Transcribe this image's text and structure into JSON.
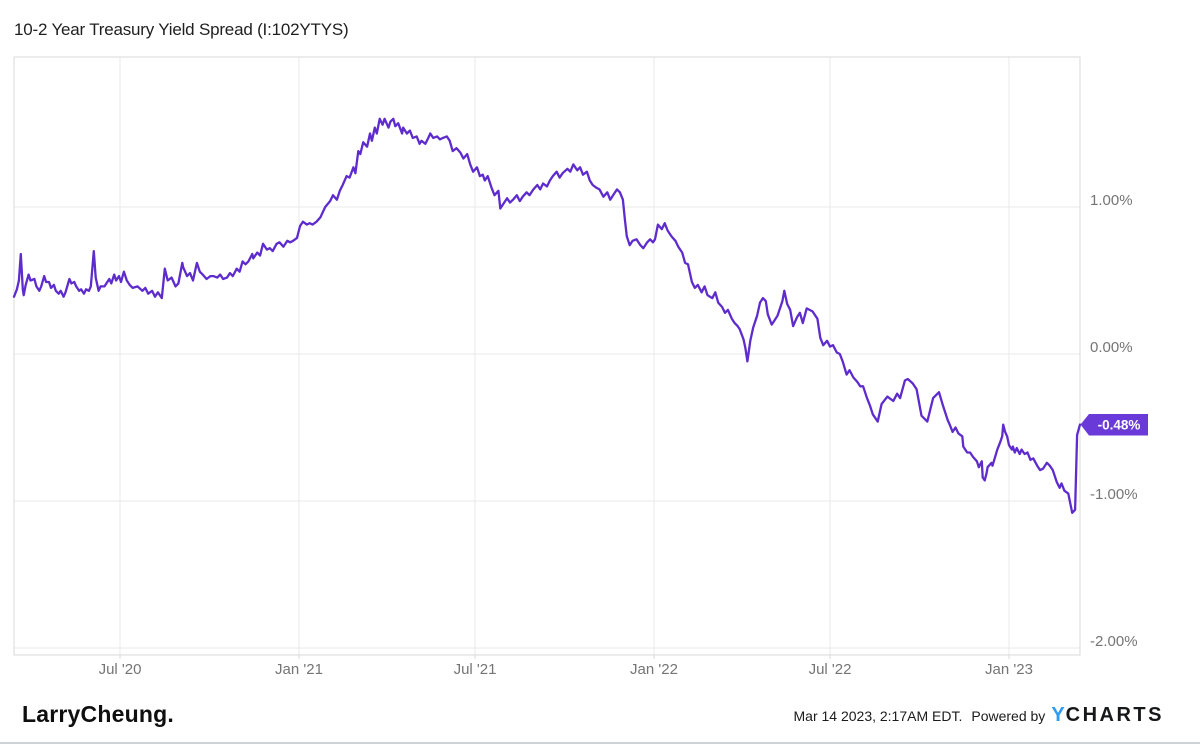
{
  "header": {
    "title": "10-2 Year Treasury Yield Spread (I:102YTYS)"
  },
  "footer": {
    "brand": "LarryCheung.",
    "timestamp": "Mar 14 2023, 2:17AM EDT.",
    "powered_by": "Powered by",
    "ycharts_y": "Y",
    "ycharts_rest": "CHARTS"
  },
  "colors": {
    "line": "#5e2ccd",
    "badge": "#6a3ad8",
    "badge_text": "#ffffff",
    "grid": "#e8e8e8",
    "plot_border": "#d9d9d9",
    "axis_text": "#757575",
    "ycharts_blue": "#2e9bf2",
    "divider": "#cfd2d4"
  },
  "chart_data": {
    "type": "line",
    "title": "10-2 Year Treasury Yield Spread (I:102YTYS)",
    "series_name": "10-2 Year Treasury Yield Spread",
    "unit": "percent",
    "x_domain": {
      "start": "2020-03-14",
      "end": "2023-03-14",
      "total_days": 1096
    },
    "ylim": [
      -2.05,
      2.02
    ],
    "grid": true,
    "legend_position": "none",
    "last_value_label": "-0.48%",
    "last_value": -0.48,
    "x_axis": {
      "ticks": [
        {
          "t": 109,
          "label": "Jul '20"
        },
        {
          "t": 293,
          "label": "Jan '21"
        },
        {
          "t": 474,
          "label": "Jul '21"
        },
        {
          "t": 658,
          "label": "Jan '22"
        },
        {
          "t": 839,
          "label": "Jul '22"
        },
        {
          "t": 1023,
          "label": "Jan '23"
        }
      ]
    },
    "y_axis": {
      "ticks": [
        {
          "value": 1,
          "label": "1.00%"
        },
        {
          "value": 0,
          "label": "0.00%"
        },
        {
          "value": -1,
          "label": "-1.00%"
        },
        {
          "value": -2,
          "label": "-2.00%"
        }
      ]
    },
    "points": {
      "t_days": [
        0,
        3,
        5,
        7,
        9,
        10,
        12,
        15,
        17,
        21,
        23,
        26,
        28,
        31,
        33,
        36,
        38,
        41,
        43,
        46,
        48,
        51,
        53,
        57,
        59,
        62,
        64,
        67,
        69,
        72,
        74,
        77,
        79,
        82,
        84,
        87,
        89,
        93,
        95,
        98,
        100,
        103,
        105,
        108,
        110,
        113,
        116,
        119,
        122,
        127,
        132,
        135,
        138,
        142,
        145,
        148,
        152,
        155,
        158,
        162,
        166,
        169,
        173,
        174,
        178,
        181,
        184,
        188,
        191,
        194,
        198,
        202,
        205,
        209,
        212,
        215,
        219,
        222,
        225,
        229,
        232,
        235,
        238,
        241,
        245,
        246,
        250,
        253,
        256,
        260,
        263,
        266,
        270,
        273,
        277,
        281,
        284,
        287,
        291,
        294,
        297,
        301,
        304,
        307,
        311,
        315,
        320,
        325,
        328,
        332,
        335,
        338,
        342,
        345,
        349,
        351,
        354,
        356,
        359,
        363,
        366,
        368,
        371,
        373,
        376,
        379,
        381,
        385,
        387,
        390,
        392,
        395,
        399,
        400,
        404,
        407,
        410,
        414,
        417,
        419,
        423,
        426,
        428,
        431,
        435,
        438,
        441,
        445,
        448,
        451,
        455,
        459,
        462,
        466,
        469,
        472,
        476,
        479,
        482,
        484,
        487,
        491,
        494,
        498,
        500,
        503,
        507,
        510,
        513,
        517,
        520,
        523,
        527,
        530,
        534,
        538,
        541,
        544,
        548,
        551,
        554,
        558,
        561,
        564,
        569,
        572,
        575,
        579,
        582,
        585,
        589,
        592,
        595,
        599,
        602,
        606,
        610,
        613,
        616,
        620,
        623,
        626,
        628,
        630,
        633,
        636,
        640,
        644,
        647,
        651,
        654,
        657,
        659,
        662,
        666,
        669,
        672,
        676,
        680,
        683,
        687,
        690,
        693,
        697,
        700,
        703,
        707,
        710,
        713,
        718,
        721,
        724,
        728,
        731,
        734,
        738,
        741,
        744,
        746,
        750,
        752,
        754,
        757,
        760,
        764,
        767,
        770,
        773,
        775,
        779,
        782,
        785,
        790,
        792,
        795,
        798,
        801,
        805,
        808,
        811,
        815,
        818,
        821,
        826,
        829,
        832,
        836,
        839,
        842,
        846,
        849,
        852,
        856,
        859,
        863,
        867,
        870,
        873,
        877,
        880,
        883,
        888,
        892,
        898,
        904,
        908,
        911,
        916,
        919,
        924,
        928,
        933,
        939,
        942,
        945,
        951,
        955,
        960,
        962,
        965,
        968,
        971,
        975,
        976,
        980,
        983,
        986,
        990,
        992,
        995,
        996,
        998,
        1000,
        1001,
        1005,
        1006,
        1011,
        1014,
        1016,
        1017,
        1019,
        1021,
        1023,
        1026,
        1027,
        1029,
        1031,
        1034,
        1036,
        1039,
        1042,
        1045,
        1048,
        1052,
        1055,
        1058,
        1062,
        1065,
        1068,
        1072,
        1075,
        1077,
        1080,
        1084,
        1088,
        1091,
        1093,
        1096
      ],
      "values": [
        0.39,
        0.44,
        0.5,
        0.68,
        0.44,
        0.4,
        0.47,
        0.54,
        0.5,
        0.51,
        0.46,
        0.43,
        0.46,
        0.53,
        0.49,
        0.49,
        0.45,
        0.47,
        0.43,
        0.41,
        0.43,
        0.39,
        0.42,
        0.51,
        0.48,
        0.49,
        0.46,
        0.43,
        0.44,
        0.41,
        0.44,
        0.43,
        0.46,
        0.7,
        0.52,
        0.43,
        0.46,
        0.46,
        0.48,
        0.51,
        0.48,
        0.54,
        0.5,
        0.53,
        0.49,
        0.56,
        0.5,
        0.47,
        0.45,
        0.46,
        0.43,
        0.45,
        0.41,
        0.43,
        0.39,
        0.42,
        0.38,
        0.58,
        0.5,
        0.52,
        0.46,
        0.48,
        0.62,
        0.59,
        0.53,
        0.55,
        0.5,
        0.62,
        0.56,
        0.54,
        0.51,
        0.53,
        0.53,
        0.52,
        0.54,
        0.51,
        0.52,
        0.55,
        0.53,
        0.58,
        0.56,
        0.63,
        0.61,
        0.63,
        0.68,
        0.65,
        0.69,
        0.67,
        0.75,
        0.71,
        0.72,
        0.7,
        0.75,
        0.76,
        0.73,
        0.77,
        0.76,
        0.77,
        0.79,
        0.87,
        0.9,
        0.88,
        0.89,
        0.88,
        0.9,
        0.93,
        1.0,
        1.04,
        1.08,
        1.05,
        1.11,
        1.15,
        1.21,
        1.2,
        1.27,
        1.23,
        1.38,
        1.36,
        1.44,
        1.41,
        1.5,
        1.45,
        1.54,
        1.5,
        1.6,
        1.56,
        1.6,
        1.54,
        1.58,
        1.6,
        1.55,
        1.57,
        1.5,
        1.54,
        1.5,
        1.52,
        1.47,
        1.48,
        1.43,
        1.45,
        1.43,
        1.47,
        1.5,
        1.47,
        1.48,
        1.46,
        1.47,
        1.48,
        1.45,
        1.38,
        1.4,
        1.37,
        1.33,
        1.36,
        1.29,
        1.24,
        1.27,
        1.21,
        1.22,
        1.18,
        1.21,
        1.13,
        1.08,
        1.11,
        0.99,
        1.02,
        1.06,
        1.03,
        1.05,
        1.08,
        1.04,
        1.07,
        1.1,
        1.08,
        1.12,
        1.15,
        1.12,
        1.16,
        1.14,
        1.18,
        1.21,
        1.24,
        1.2,
        1.23,
        1.26,
        1.24,
        1.29,
        1.25,
        1.27,
        1.22,
        1.24,
        1.18,
        1.15,
        1.13,
        1.12,
        1.07,
        1.1,
        1.05,
        1.08,
        1.12,
        1.1,
        1.05,
        0.92,
        0.8,
        0.74,
        0.77,
        0.78,
        0.74,
        0.72,
        0.76,
        0.78,
        0.76,
        0.78,
        0.88,
        0.85,
        0.89,
        0.84,
        0.8,
        0.77,
        0.73,
        0.69,
        0.62,
        0.61,
        0.49,
        0.45,
        0.47,
        0.42,
        0.46,
        0.4,
        0.38,
        0.42,
        0.35,
        0.32,
        0.28,
        0.3,
        0.24,
        0.21,
        0.19,
        0.17,
        0.1,
        0.04,
        -0.05,
        0.09,
        0.18,
        0.26,
        0.35,
        0.38,
        0.36,
        0.27,
        0.2,
        0.23,
        0.26,
        0.36,
        0.43,
        0.34,
        0.3,
        0.19,
        0.25,
        0.28,
        0.21,
        0.31,
        0.3,
        0.29,
        0.24,
        0.11,
        0.06,
        0.09,
        0.05,
        0.06,
        0.01,
        0.0,
        -0.05,
        -0.14,
        -0.11,
        -0.16,
        -0.19,
        -0.22,
        -0.22,
        -0.3,
        -0.35,
        -0.41,
        -0.46,
        -0.34,
        -0.29,
        -0.32,
        -0.27,
        -0.3,
        -0.18,
        -0.17,
        -0.2,
        -0.24,
        -0.42,
        -0.46,
        -0.38,
        -0.3,
        -0.26,
        -0.35,
        -0.45,
        -0.48,
        -0.53,
        -0.5,
        -0.54,
        -0.56,
        -0.63,
        -0.67,
        -0.67,
        -0.7,
        -0.73,
        -0.77,
        -0.73,
        -0.84,
        -0.86,
        -0.81,
        -0.77,
        -0.74,
        -0.76,
        -0.65,
        -0.6,
        -0.56,
        -0.48,
        -0.53,
        -0.56,
        -0.62,
        -0.65,
        -0.63,
        -0.67,
        -0.64,
        -0.68,
        -0.65,
        -0.68,
        -0.67,
        -0.72,
        -0.71,
        -0.76,
        -0.79,
        -0.78,
        -0.74,
        -0.76,
        -0.79,
        -0.87,
        -0.91,
        -0.88,
        -0.93,
        -0.95,
        -1.08,
        -1.06,
        -0.55,
        -0.48
      ]
    }
  }
}
